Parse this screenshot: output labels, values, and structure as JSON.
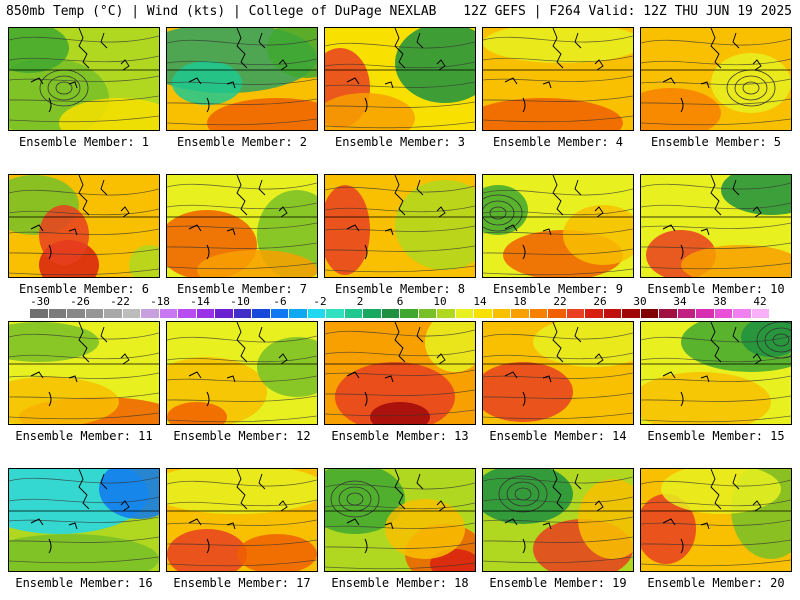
{
  "header": {
    "left": "850mb Temp (°C) | Wind (kts) | College of DuPage NEXLAB",
    "right": "12Z GEFS | F264 Valid: 12Z THU JUN 19 2025"
  },
  "panels": [
    {
      "label": "Ensemble Member: 1"
    },
    {
      "label": "Ensemble Member: 2"
    },
    {
      "label": "Ensemble Member: 3"
    },
    {
      "label": "Ensemble Member: 4"
    },
    {
      "label": "Ensemble Member: 5"
    },
    {
      "label": "Ensemble Member: 6"
    },
    {
      "label": "Ensemble Member: 7"
    },
    {
      "label": "Ensemble Member: 8"
    },
    {
      "label": "Ensemble Member: 9"
    },
    {
      "label": "Ensemble Member: 10"
    },
    {
      "label": "Ensemble Member: 11"
    },
    {
      "label": "Ensemble Member: 12"
    },
    {
      "label": "Ensemble Member: 13"
    },
    {
      "label": "Ensemble Member: 14"
    },
    {
      "label": "Ensemble Member: 15"
    },
    {
      "label": "Ensemble Member: 16"
    },
    {
      "label": "Ensemble Member: 17"
    },
    {
      "label": "Ensemble Member: 18"
    },
    {
      "label": "Ensemble Member: 19"
    },
    {
      "label": "Ensemble Member: 20"
    }
  ],
  "colorbar": {
    "ticks": [
      "-30",
      "-26",
      "-22",
      "-18",
      "-14",
      "-10",
      "-6",
      "-2",
      "2",
      "6",
      "10",
      "14",
      "18",
      "22",
      "26",
      "30",
      "34",
      "38",
      "42"
    ],
    "colors": [
      "#707070",
      "#7c7c7c",
      "#888888",
      "#969696",
      "#a8a8a8",
      "#bcbcbc",
      "#c8a0e0",
      "#c878f0",
      "#b84cf0",
      "#9a30e8",
      "#6a20d0",
      "#4030c8",
      "#1848d8",
      "#1078f0",
      "#10a8f0",
      "#20d8f0",
      "#30e0c0",
      "#20c890",
      "#18a860",
      "#1e9040",
      "#40a830",
      "#78c028",
      "#b0d820",
      "#e8f020",
      "#f8e000",
      "#f8c000",
      "#f8a000",
      "#f88000",
      "#f06000",
      "#e84020",
      "#d82010",
      "#c01010",
      "#a00808",
      "#800000",
      "#a01040",
      "#c02080",
      "#d830b0",
      "#e850d8",
      "#f080f0",
      "#f8b0f8"
    ]
  }
}
